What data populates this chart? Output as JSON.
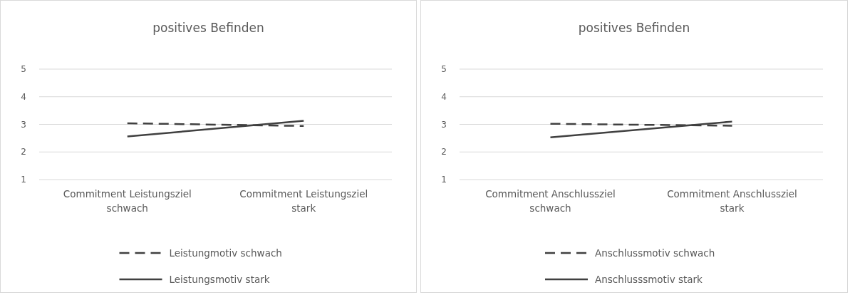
{
  "chart_data": [
    {
      "type": "line",
      "title": "positives Befinden",
      "categories": [
        "Commitment Leistungsziel schwach",
        "Commitment Leistungsziel stark"
      ],
      "ylim": [
        1,
        5
      ],
      "yticks": [
        1,
        2,
        3,
        4,
        5
      ],
      "grid": "y",
      "legend": "bottom",
      "marker": "none",
      "series": [
        {
          "name": "Leistungmotiv schwach",
          "color": "#404040",
          "line_style": "dashed",
          "values": [
            3.04,
            2.94
          ]
        },
        {
          "name": "Leistungsmotiv stark",
          "color": "#404040",
          "line_style": "solid",
          "values": [
            2.56,
            3.13
          ]
        }
      ]
    },
    {
      "type": "line",
      "title": "positives Befinden",
      "categories": [
        "Commitment Anschlussziel schwach",
        "Commitment Anschlussziel stark"
      ],
      "ylim": [
        1,
        5
      ],
      "yticks": [
        1,
        2,
        3,
        4,
        5
      ],
      "grid": "y",
      "legend": "bottom",
      "marker": "none",
      "series": [
        {
          "name": "Anschlussmotiv schwach",
          "color": "#404040",
          "line_style": "dashed",
          "values": [
            3.02,
            2.95
          ]
        },
        {
          "name": "Anschlusssmotiv stark",
          "color": "#404040",
          "line_style": "solid",
          "values": [
            2.53,
            3.1
          ]
        }
      ]
    }
  ]
}
